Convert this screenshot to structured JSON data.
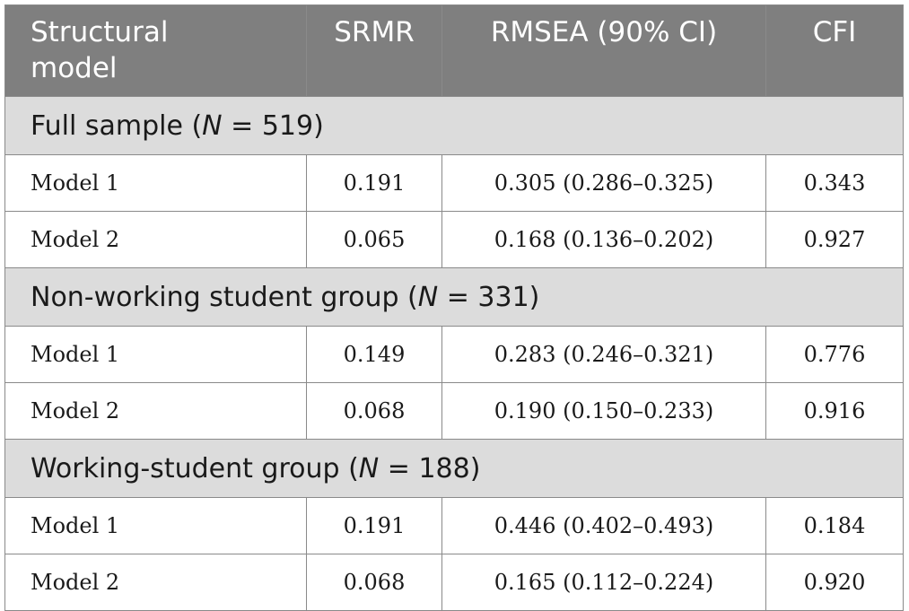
{
  "header": {
    "col1_line1": "Structural",
    "col1_line2": "model",
    "col2": "SRMR",
    "col3": "RMSEA (90% CI)",
    "col4": "CFI"
  },
  "groups": [
    {
      "label_pre": "Full sample (",
      "label_n": "N",
      "label_post": " = 519)",
      "rows": [
        {
          "model": "Model 1",
          "srmr": "0.191",
          "rmsea": "0.305 (0.286–0.325)",
          "cfi": "0.343"
        },
        {
          "model": "Model 2",
          "srmr": "0.065",
          "rmsea": "0.168 (0.136–0.202)",
          "cfi": "0.927"
        }
      ]
    },
    {
      "label_pre": "Non-working student group (",
      "label_n": "N",
      "label_post": " = 331)",
      "rows": [
        {
          "model": "Model 1",
          "srmr": "0.149",
          "rmsea": "0.283 (0.246–0.321)",
          "cfi": "0.776"
        },
        {
          "model": "Model 2",
          "srmr": "0.068",
          "rmsea": "0.190 (0.150–0.233)",
          "cfi": "0.916"
        }
      ]
    },
    {
      "label_pre": "Working-student group (",
      "label_n": "N",
      "label_post": " = 188)",
      "rows": [
        {
          "model": "Model 1",
          "srmr": "0.191",
          "rmsea": "0.446 (0.402–0.493)",
          "cfi": "0.184"
        },
        {
          "model": "Model 2",
          "srmr": "0.068",
          "rmsea": "0.165 (0.112–0.224)",
          "cfi": "0.920"
        }
      ]
    }
  ],
  "colors": {
    "header_bg": "#7f7f7f",
    "group_bg": "#dcdcdc",
    "border": "#8a8a8a"
  }
}
